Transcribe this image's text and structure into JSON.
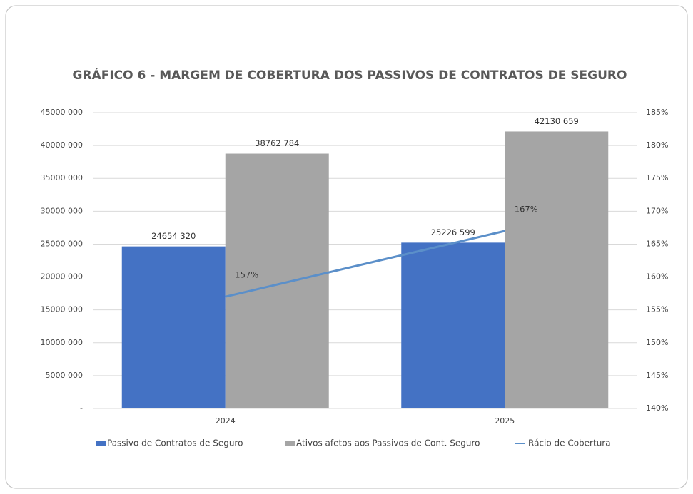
{
  "chart_data": {
    "type": "bar",
    "title": "GRÁFICO 6 - MARGEM DE COBERTURA DOS PASSIVOS DE CONTRATOS DE SEGURO",
    "categories": [
      "2024",
      "2025"
    ],
    "series": [
      {
        "name": "Passivo de Contratos de Seguro",
        "color": "#4472c4",
        "type": "bar",
        "axis": "y",
        "values": [
          24654320,
          25226599
        ],
        "value_labels": [
          "24654 320",
          "25226 599"
        ]
      },
      {
        "name": "Ativos afetos aos Passivos de Cont. Seguro",
        "color": "#a5a5a5",
        "type": "bar",
        "axis": "y",
        "values": [
          38762784,
          42130659
        ],
        "value_labels": [
          "38762 784",
          "42130 659"
        ]
      },
      {
        "name": "Rácio de Cobertura",
        "color": "#5b8fc9",
        "type": "line",
        "axis": "y2",
        "values": [
          157,
          167
        ],
        "value_labels": [
          "157%",
          "167%"
        ]
      }
    ],
    "ylim": [
      0,
      45000000
    ],
    "yticks": [
      {
        "value": 0,
        "label": "-"
      },
      {
        "value": 5000000,
        "label": "5000 000"
      },
      {
        "value": 10000000,
        "label": "10000 000"
      },
      {
        "value": 15000000,
        "label": "15000 000"
      },
      {
        "value": 20000000,
        "label": "20000 000"
      },
      {
        "value": 25000000,
        "label": "25000 000"
      },
      {
        "value": 30000000,
        "label": "30000 000"
      },
      {
        "value": 35000000,
        "label": "35000 000"
      },
      {
        "value": 40000000,
        "label": "40000 000"
      },
      {
        "value": 45000000,
        "label": "45000 000"
      }
    ],
    "y2lim": [
      140,
      185
    ],
    "y2ticks": [
      {
        "value": 140,
        "label": "140%"
      },
      {
        "value": 145,
        "label": "145%"
      },
      {
        "value": 150,
        "label": "150%"
      },
      {
        "value": 155,
        "label": "155%"
      },
      {
        "value": 160,
        "label": "160%"
      },
      {
        "value": 165,
        "label": "165%"
      },
      {
        "value": 170,
        "label": "170%"
      },
      {
        "value": 175,
        "label": "175%"
      },
      {
        "value": 180,
        "label": "180%"
      },
      {
        "value": 185,
        "label": "185%"
      }
    ],
    "grid": true,
    "legend": "bottom"
  }
}
